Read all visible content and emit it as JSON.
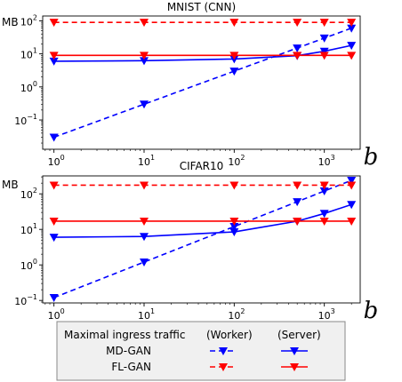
{
  "chart_data": [
    {
      "type": "line",
      "title": "MNIST (CNN)",
      "ylabel": "MB",
      "xlabel": "b",
      "xscale": "log",
      "yscale": "log",
      "xlim": [
        0.75,
        2500
      ],
      "ylim": [
        0.013,
        140
      ],
      "xticks": [
        1,
        10,
        100,
        1000
      ],
      "xtick_labels": [
        "10^0",
        "10^1",
        "10^2",
        "10^3"
      ],
      "yticks": [
        0.1,
        1,
        10,
        100
      ],
      "ytick_labels": [
        "10^-1",
        "10^0",
        "10^1",
        "10^2"
      ],
      "grid": false,
      "series": [
        {
          "name": "MD-GAN (Worker)",
          "color": "#0000ff",
          "style": "dashed",
          "marker": "triangle-down",
          "x": [
            1,
            10,
            100,
            500,
            1000,
            2000
          ],
          "y": [
            0.03,
            0.3,
            3,
            15,
            30,
            60
          ]
        },
        {
          "name": "MD-GAN (Server)",
          "color": "#0000ff",
          "style": "solid",
          "marker": "triangle-down",
          "x": [
            1,
            10,
            100,
            500,
            1000,
            2000
          ],
          "y": [
            6,
            6.2,
            7,
            8.8,
            12,
            18
          ]
        },
        {
          "name": "FL-GAN (Worker)",
          "color": "#ff0000",
          "style": "dashed",
          "marker": "triangle-down",
          "x": [
            1,
            10,
            100,
            500,
            1000,
            2000
          ],
          "y": [
            90,
            90,
            90,
            90,
            90,
            90
          ]
        },
        {
          "name": "FL-GAN (Server)",
          "color": "#ff0000",
          "style": "solid",
          "marker": "triangle-down",
          "x": [
            1,
            10,
            100,
            500,
            1000,
            2000
          ],
          "y": [
            9,
            9,
            9,
            9,
            9,
            9
          ]
        }
      ]
    },
    {
      "type": "line",
      "title": "CIFAR10",
      "ylabel": "MB",
      "xlabel": "b",
      "xscale": "log",
      "yscale": "log",
      "xlim": [
        0.75,
        2500
      ],
      "ylim": [
        0.085,
        320
      ],
      "xticks": [
        1,
        10,
        100,
        1000
      ],
      "xtick_labels": [
        "10^0",
        "10^1",
        "10^2",
        "10^3"
      ],
      "yticks": [
        0.1,
        1,
        10,
        100
      ],
      "ytick_labels": [
        "10^-1",
        "10^0",
        "10^1",
        "10^2"
      ],
      "grid": false,
      "series": [
        {
          "name": "MD-GAN (Worker)",
          "color": "#0000ff",
          "style": "dashed",
          "marker": "triangle-down",
          "x": [
            1,
            10,
            100,
            500,
            1000,
            2000
          ],
          "y": [
            0.12,
            1.2,
            12,
            60,
            120,
            240
          ]
        },
        {
          "name": "MD-GAN (Server)",
          "color": "#0000ff",
          "style": "solid",
          "marker": "triangle-down",
          "x": [
            1,
            10,
            100,
            500,
            1000,
            2000
          ],
          "y": [
            6,
            6.3,
            8.5,
            17,
            28,
            50
          ]
        },
        {
          "name": "FL-GAN (Worker)",
          "color": "#ff0000",
          "style": "dashed",
          "marker": "triangle-down",
          "x": [
            1,
            10,
            100,
            500,
            1000,
            2000
          ],
          "y": [
            175,
            175,
            175,
            175,
            175,
            175
          ]
        },
        {
          "name": "FL-GAN (Server)",
          "color": "#ff0000",
          "style": "solid",
          "marker": "triangle-down",
          "x": [
            1,
            10,
            100,
            500,
            1000,
            2000
          ],
          "y": [
            17,
            17,
            17,
            17,
            17,
            17
          ]
        }
      ]
    }
  ],
  "legend": {
    "title": "Maximal ingress traffic",
    "col_worker": "(Worker)",
    "col_server": "(Server)",
    "rows": [
      {
        "label": "MD-GAN",
        "color": "#0000ff"
      },
      {
        "label": "FL-GAN",
        "color": "#ff0000"
      }
    ]
  }
}
